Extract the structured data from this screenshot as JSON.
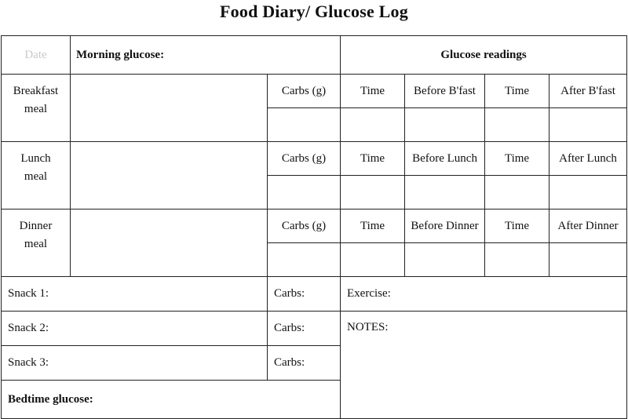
{
  "title": "Food Diary/ Glucose Log",
  "header": {
    "date": "Date",
    "morning_glucose": "Morning glucose:",
    "glucose_readings": "Glucose readings"
  },
  "meals": [
    {
      "line1": "Breakfast",
      "line2": "meal",
      "carbs": "Carbs (g)",
      "time1": "Time",
      "before": "Before B'fast",
      "time2": "Time",
      "after": "After B'fast"
    },
    {
      "line1": "Lunch",
      "line2": "meal",
      "carbs": "Carbs (g)",
      "time1": "Time",
      "before": "Before Lunch",
      "time2": "Time",
      "after": "After Lunch"
    },
    {
      "line1": "Dinner",
      "line2": "meal",
      "carbs": "Carbs (g)",
      "time1": "Time",
      "before": "Before Dinner",
      "time2": "Time",
      "after": "After Dinner"
    }
  ],
  "snacks": [
    {
      "label": "Snack 1:",
      "carbs": "Carbs:"
    },
    {
      "label": "Snack 2:",
      "carbs": "Carbs:"
    },
    {
      "label": "Snack 3:",
      "carbs": "Carbs:"
    }
  ],
  "exercise": "Exercise:",
  "notes": "NOTES:",
  "bedtime_glucose": "Bedtime glucose:"
}
